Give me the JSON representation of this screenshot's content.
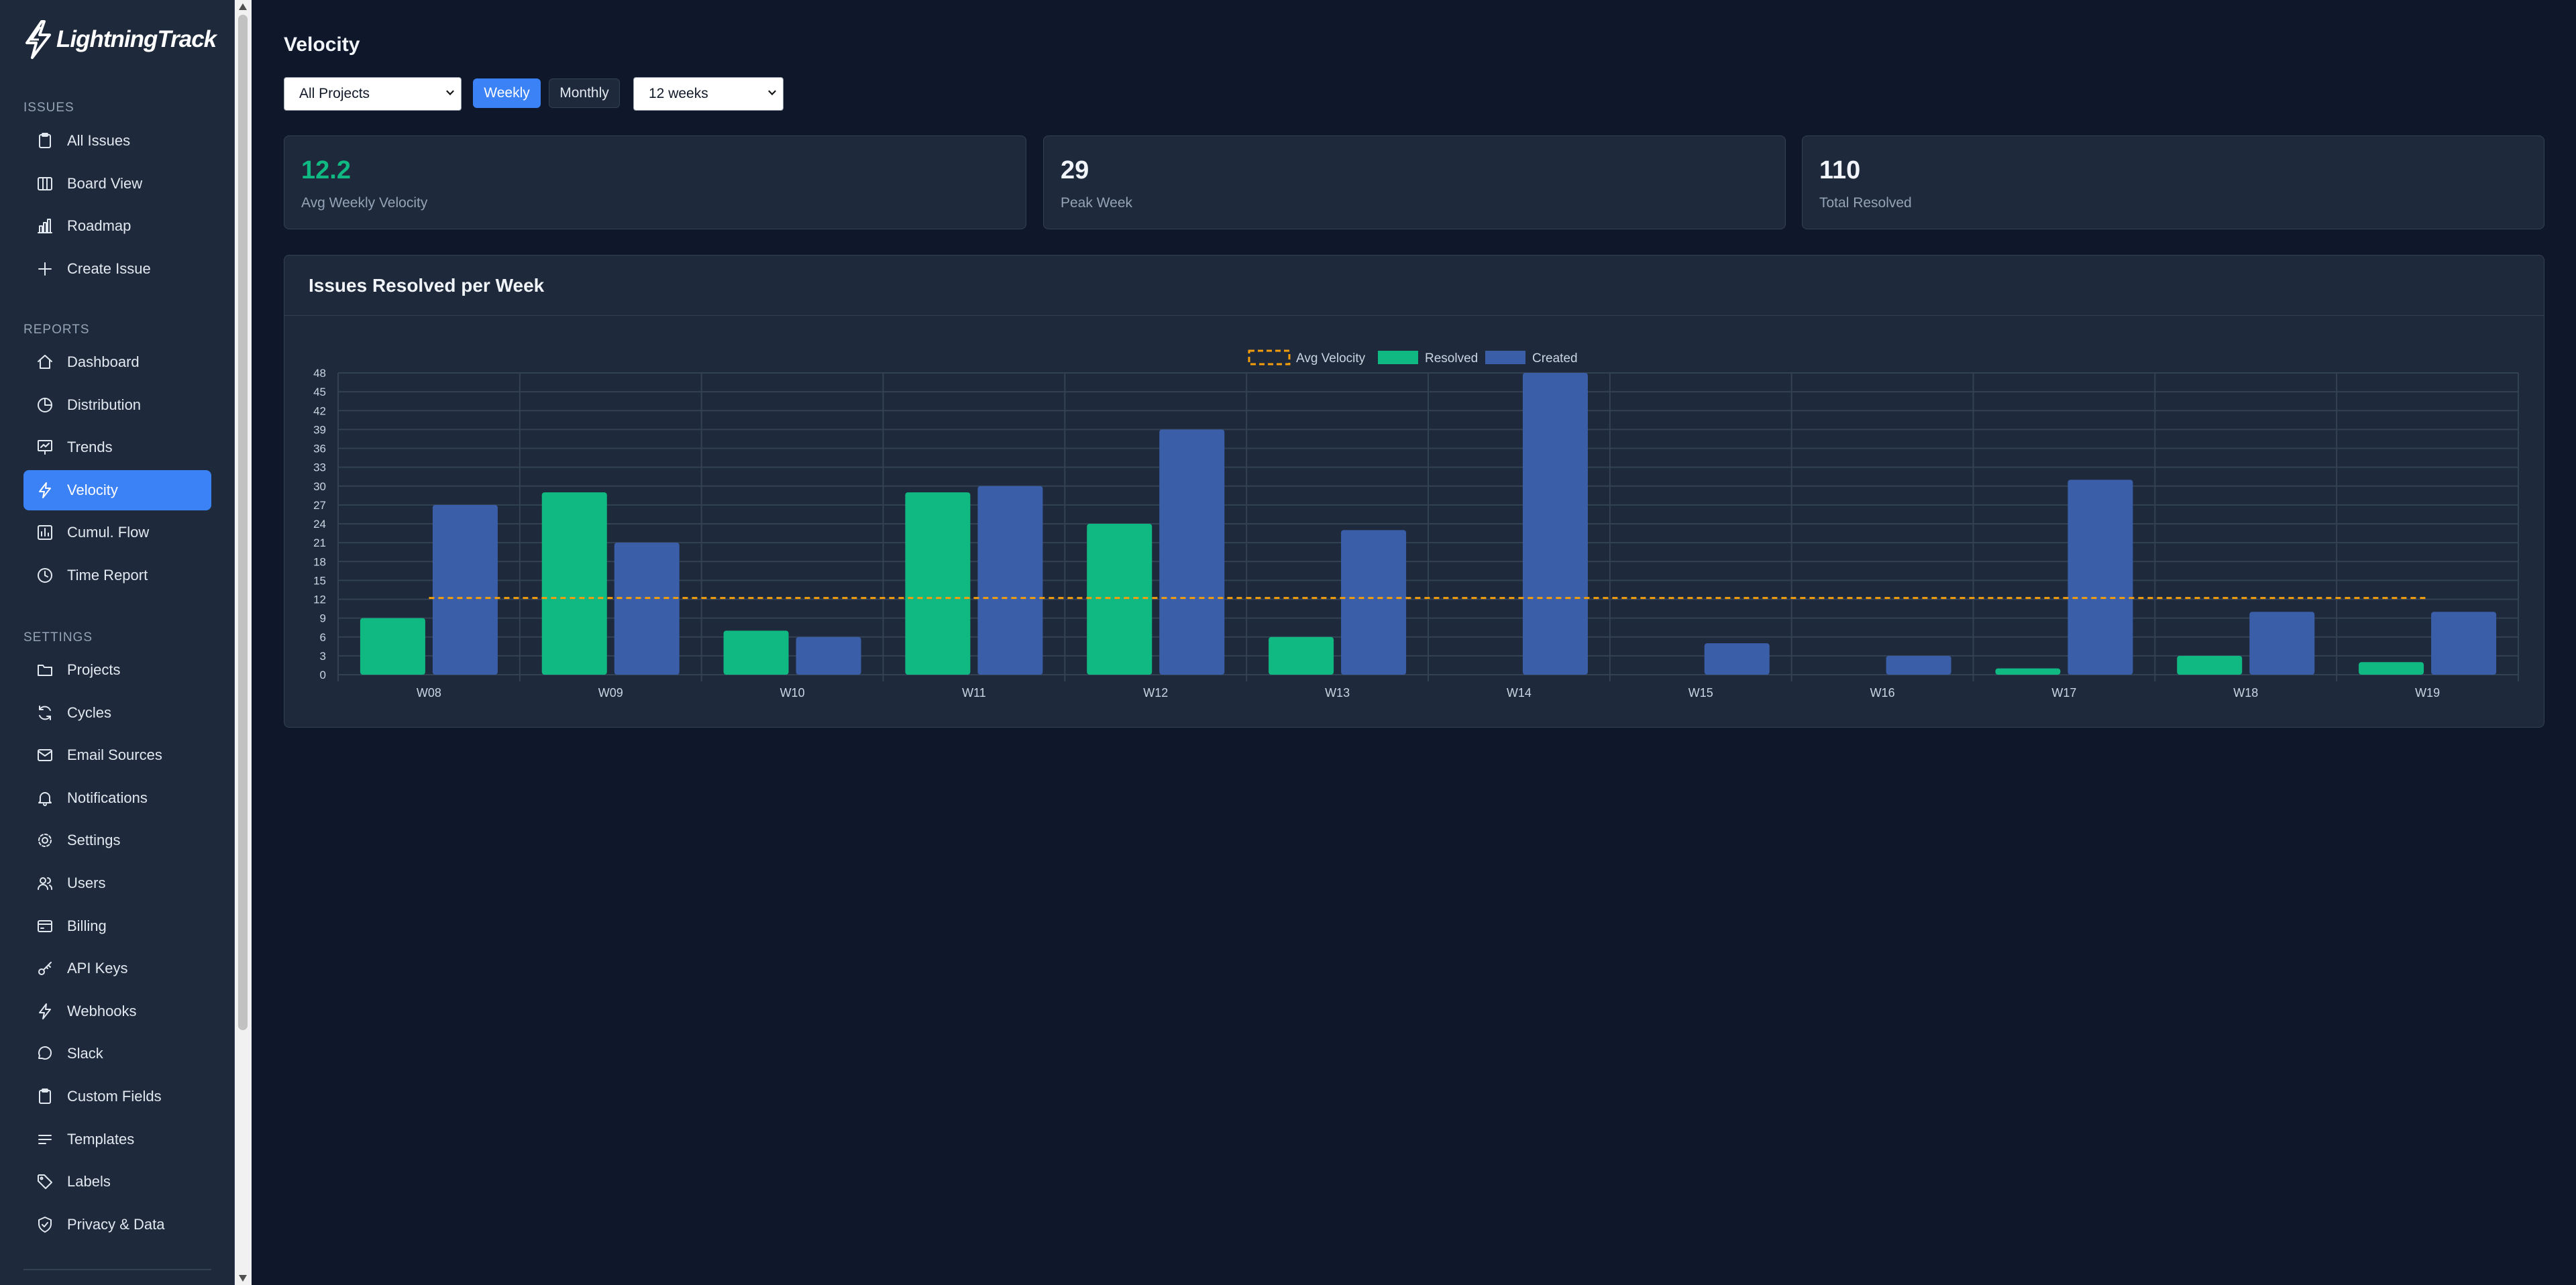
{
  "app": {
    "name": "LightningTrack"
  },
  "sidebar": {
    "sections": [
      {
        "title": "Issues",
        "items": [
          {
            "label": "All Issues",
            "icon": "clipboard-icon"
          },
          {
            "label": "Board View",
            "icon": "columns-icon"
          },
          {
            "label": "Roadmap",
            "icon": "roadmap-chart-icon"
          },
          {
            "label": "Create Issue",
            "icon": "plus-icon"
          }
        ]
      },
      {
        "title": "Reports",
        "items": [
          {
            "label": "Dashboard",
            "icon": "home-icon"
          },
          {
            "label": "Distribution",
            "icon": "pie-chart-icon"
          },
          {
            "label": "Trends",
            "icon": "presentation-chart-icon"
          },
          {
            "label": "Velocity",
            "icon": "lightning-icon",
            "active": true
          },
          {
            "label": "Cumul. Flow",
            "icon": "bar-chart-icon"
          },
          {
            "label": "Time Report",
            "icon": "clock-icon"
          }
        ]
      },
      {
        "title": "Settings",
        "items": [
          {
            "label": "Projects",
            "icon": "folder-icon"
          },
          {
            "label": "Cycles",
            "icon": "refresh-icon"
          },
          {
            "label": "Email Sources",
            "icon": "mail-icon"
          },
          {
            "label": "Notifications",
            "icon": "bell-icon"
          },
          {
            "label": "Settings",
            "icon": "gear-icon"
          },
          {
            "label": "Users",
            "icon": "users-icon"
          },
          {
            "label": "Billing",
            "icon": "credit-card-icon"
          },
          {
            "label": "API Keys",
            "icon": "key-icon"
          },
          {
            "label": "Webhooks",
            "icon": "lightning-icon"
          },
          {
            "label": "Slack",
            "icon": "chat-bubble-icon"
          },
          {
            "label": "Custom Fields",
            "icon": "clipboard-icon"
          },
          {
            "label": "Templates",
            "icon": "lines-icon"
          },
          {
            "label": "Labels",
            "icon": "tag-icon"
          },
          {
            "label": "Privacy & Data",
            "icon": "shield-check-icon"
          }
        ]
      }
    ]
  },
  "page": {
    "title": "Velocity",
    "filters": {
      "project_select": "All Projects",
      "weekly_label": "Weekly",
      "monthly_label": "Monthly",
      "active_period": "Weekly",
      "range_select": "12 weeks"
    },
    "stats": [
      {
        "value": "12.2",
        "label": "Avg Weekly Velocity"
      },
      {
        "value": "29",
        "label": "Peak Week"
      },
      {
        "value": "110",
        "label": "Total Resolved"
      }
    ]
  },
  "chart_data": {
    "type": "bar",
    "title": "Issues Resolved per Week",
    "legend_position": "top",
    "grid": true,
    "categories": [
      "W08",
      "W09",
      "W10",
      "W11",
      "W12",
      "W13",
      "W14",
      "W15",
      "W16",
      "W17",
      "W18",
      "W19"
    ],
    "series": [
      {
        "name": "Resolved",
        "type": "bar",
        "color": "#10b981",
        "values": [
          9,
          29,
          7,
          29,
          24,
          6,
          0,
          0,
          0,
          1,
          3,
          2
        ]
      },
      {
        "name": "Created",
        "type": "bar",
        "color": "#3b5ea8",
        "values": [
          27,
          21,
          6,
          30,
          39,
          23,
          48,
          5,
          3,
          31,
          10,
          10
        ]
      },
      {
        "name": "Avg Velocity",
        "type": "line",
        "style": "dashed",
        "color": "#f59e0b",
        "value": 12.2
      }
    ],
    "ylim": [
      0,
      48
    ],
    "yticks": [
      0,
      3,
      6,
      9,
      12,
      15,
      18,
      21,
      24,
      27,
      30,
      33,
      36,
      39,
      42,
      45,
      48
    ]
  }
}
